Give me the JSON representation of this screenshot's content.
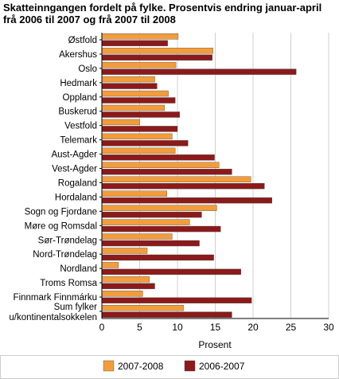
{
  "chart_data": {
    "type": "bar",
    "orientation": "horizontal",
    "title": "Skatteinngangen fordelt på fylke. Prosentvis endring januar-april frå 2006 til 2007 og frå 2007 til 2008",
    "xlabel": "Prosent",
    "ylabel": "",
    "xlim": [
      0,
      30
    ],
    "xticks": [
      "0",
      "5",
      "10",
      "15",
      "20",
      "25",
      "30"
    ],
    "grid": true,
    "legend_position": "bottom",
    "categories": [
      "Østfold",
      "Akershus",
      "Oslo",
      "Hedmark",
      "Oppland",
      "Buskerud",
      "Vestfold",
      "Telemark",
      "Aust-Agder",
      "Vest-Agder",
      "Rogaland",
      "Hordaland",
      "Sogn og Fjordane",
      "Møre og Romsdal",
      "Sør-Trøndelag",
      "Nord-Trøndelag",
      "Nordland",
      "Troms Romsa",
      "Finnmark Finnmárku",
      "Sum fylker\nu/kontinentalsokkelen"
    ],
    "series": [
      {
        "name": "2007-2008",
        "color": "#f39c3c",
        "values": [
          10.1,
          14.7,
          9.8,
          7.0,
          8.8,
          8.3,
          5.0,
          9.3,
          9.7,
          15.5,
          19.7,
          8.6,
          15.2,
          11.6,
          9.3,
          6.0,
          2.2,
          6.3,
          5.4,
          10.8
        ]
      },
      {
        "name": "2006-2007",
        "color": "#8b1a1a",
        "values": [
          8.7,
          14.6,
          25.7,
          7.3,
          9.7,
          10.3,
          10.0,
          11.4,
          14.9,
          17.2,
          21.5,
          22.5,
          13.2,
          15.7,
          12.9,
          14.8,
          18.4,
          7.0,
          19.8,
          17.2
        ]
      }
    ]
  }
}
